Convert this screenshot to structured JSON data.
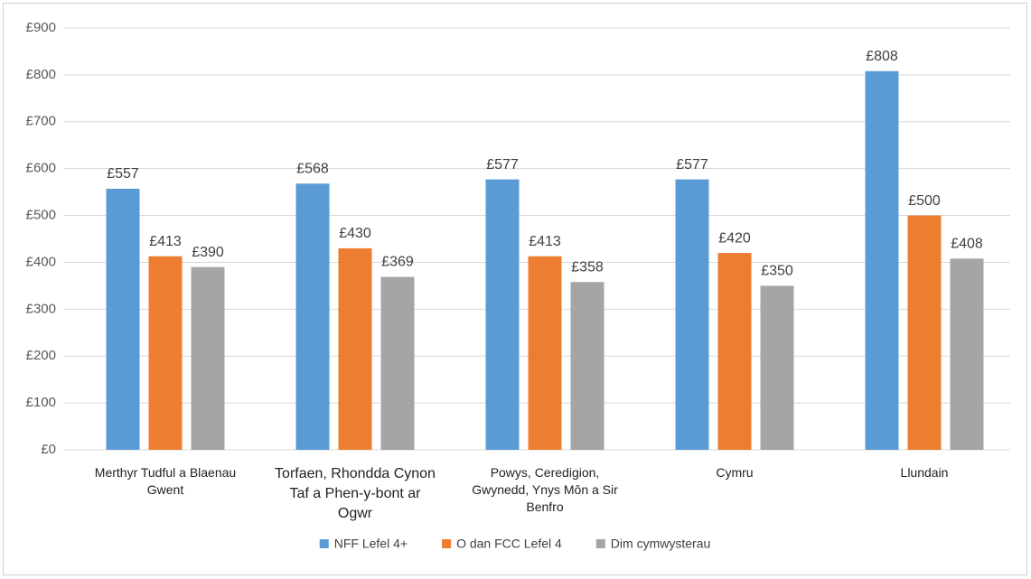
{
  "chart_data": {
    "type": "bar",
    "categories": [
      "Merthyr Tudful a Blaenau Gwent",
      "Torfaen, Rhondda Cynon Taf a Phen-y-bont ar Ogwr",
      "Powys, Ceredigion, Gwynedd, Ynys Môn a Sir Benfro",
      "Cymru",
      "Llundain"
    ],
    "series": [
      {
        "name": "NFF Lefel 4+",
        "color": "#5b9bd5",
        "values": [
          557,
          568,
          577,
          577,
          808
        ],
        "value_labels": [
          "£557",
          "£568",
          "£577",
          "£577",
          "£808"
        ]
      },
      {
        "name": "O dan FCC Lefel 4",
        "color": "#ed7d31",
        "values": [
          413,
          430,
          413,
          420,
          500
        ],
        "value_labels": [
          "£413",
          "£430",
          "£413",
          "£420",
          "£500"
        ]
      },
      {
        "name": "Dim cymwysterau",
        "color": "#a5a5a5",
        "values": [
          390,
          369,
          358,
          350,
          408
        ],
        "value_labels": [
          "£390",
          "£369",
          "£358",
          "£350",
          "£408"
        ]
      }
    ],
    "ylim": [
      0,
      900
    ],
    "yticks": [
      {
        "value": 0,
        "label": "£0"
      },
      {
        "value": 100,
        "label": "£100"
      },
      {
        "value": 200,
        "label": "£200"
      },
      {
        "value": 300,
        "label": "£300"
      },
      {
        "value": 400,
        "label": "£400"
      },
      {
        "value": 500,
        "label": "£500"
      },
      {
        "value": 600,
        "label": "£600"
      },
      {
        "value": 700,
        "label": "£700"
      },
      {
        "value": 800,
        "label": "£800"
      },
      {
        "value": 900,
        "label": "£900"
      }
    ],
    "grid": true,
    "legend": "bottom"
  }
}
